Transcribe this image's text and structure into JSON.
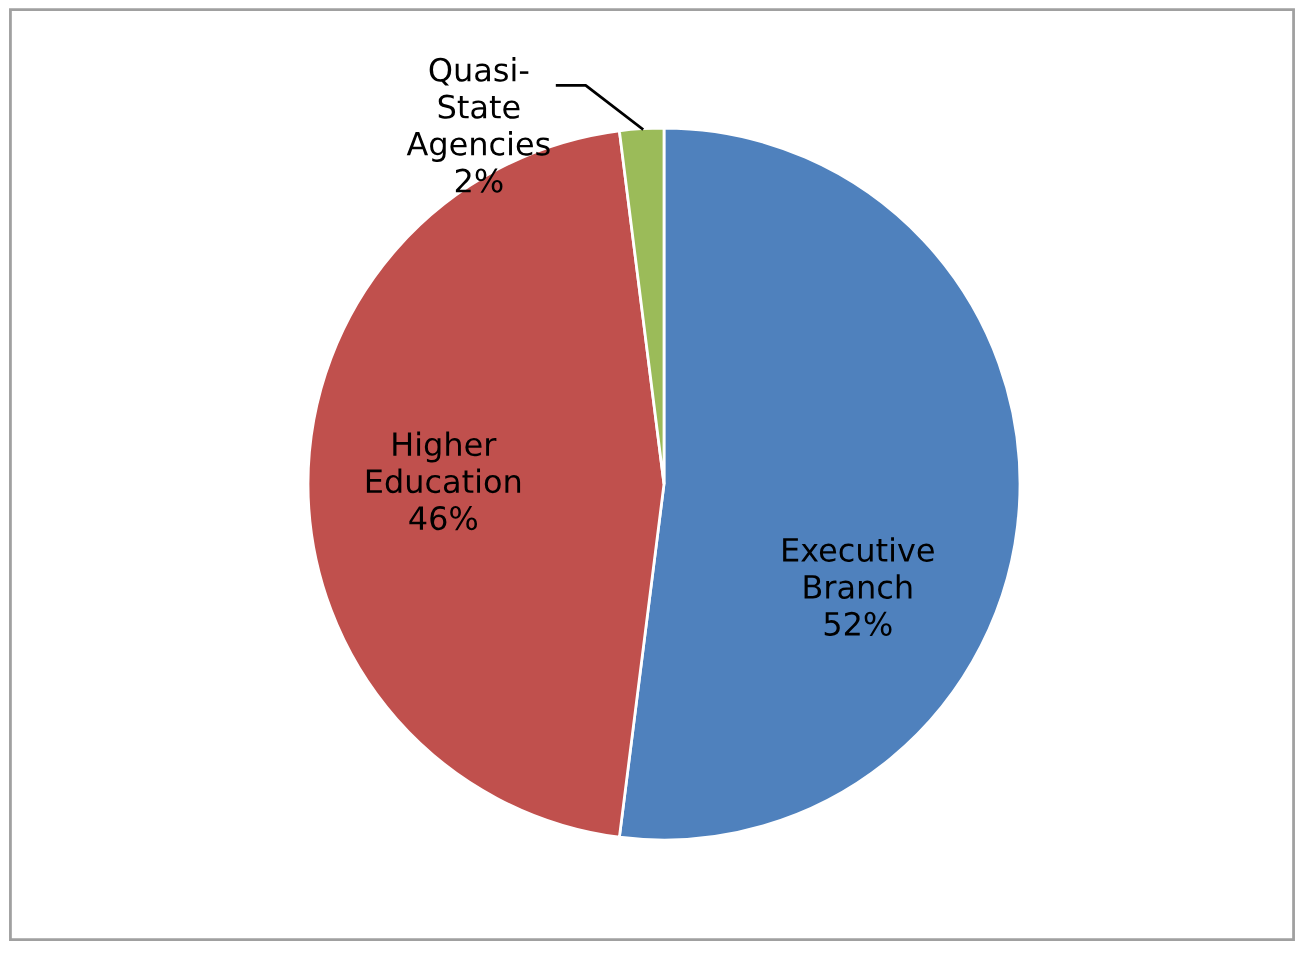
{
  "chart_data": {
    "type": "pie",
    "categories": [
      "Executive Branch",
      "Higher Education",
      "Quasi-State Agencies"
    ],
    "values": [
      52,
      46,
      2
    ],
    "colors": [
      "#4f81bd",
      "#c0504d",
      "#9bbb59"
    ],
    "value_labels": [
      "52%",
      "46%",
      "2%"
    ]
  }
}
